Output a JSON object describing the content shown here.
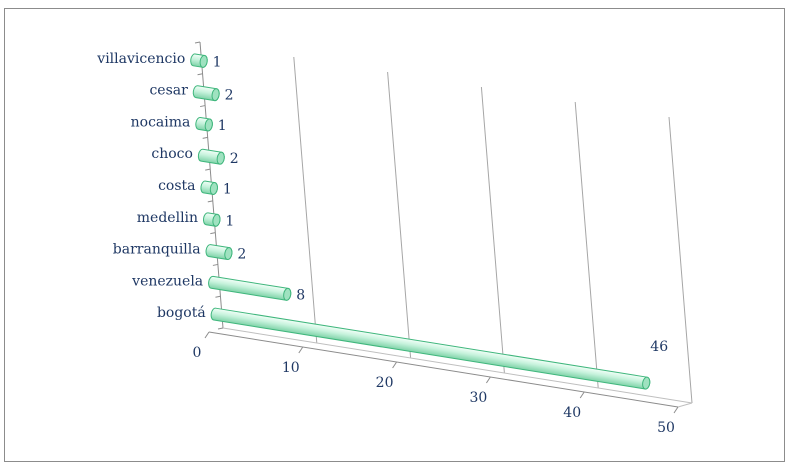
{
  "chart_data": {
    "type": "bar",
    "orientation": "horizontal",
    "style": "3d-cylinder",
    "categories": [
      "bogotá",
      "venezuela",
      "barranquilla",
      "medellin",
      "costa",
      "choco",
      "nocaima",
      "cesar",
      "villavicencio"
    ],
    "values": [
      46,
      8,
      2,
      1,
      1,
      2,
      1,
      2,
      1
    ],
    "x_ticks": [
      "0",
      "10",
      "20",
      "30",
      "40",
      "50"
    ],
    "xlim": [
      0,
      50
    ],
    "grid": true,
    "legend": "none",
    "title": "",
    "xlabel": "",
    "ylabel": "",
    "colors": {
      "bar_fill": "#c6f2dc",
      "bar_edge": "#3fb67c",
      "text": "#1f3864",
      "grid": "#a6a6a6"
    }
  }
}
